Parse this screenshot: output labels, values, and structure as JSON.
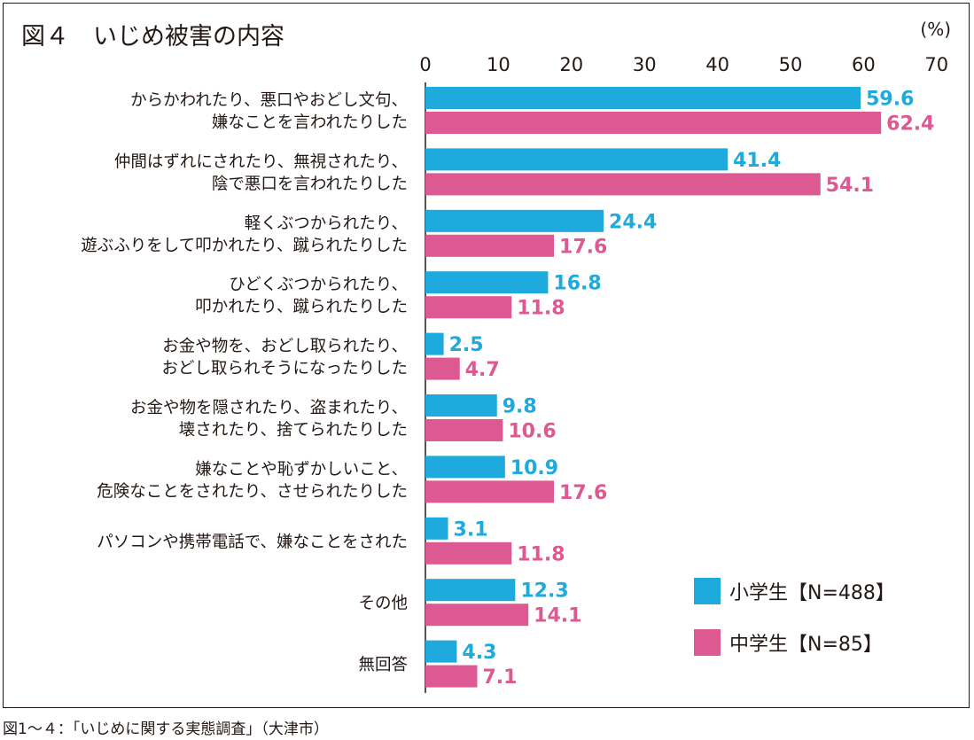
{
  "chart_data": {
    "type": "bar",
    "orientation": "horizontal",
    "title": "図４　いじめ被害の内容",
    "unit": "(%)",
    "xlim": [
      0,
      70
    ],
    "ticks": [
      0,
      10,
      20,
      30,
      40,
      50,
      60,
      70
    ],
    "grid": false,
    "legend_position": "bottom-right",
    "categories": [
      [
        "からかわれたり、悪口やおどし文句、",
        "嫌なことを言われたりした"
      ],
      [
        "仲間はずれにされたり、無視されたり、",
        "陰で悪口を言われたりした"
      ],
      [
        "軽くぶつかられたり、",
        "遊ぶふりをして叩かれたり、蹴られたりした"
      ],
      [
        "ひどくぶつかられたり、",
        "叩かれたり、蹴られたりした"
      ],
      [
        "お金や物を、おどし取られたり、",
        "おどし取られそうになったりした"
      ],
      [
        "お金や物を隠されたり、盗まれたり、",
        "壊されたり、捨てられたりした"
      ],
      [
        "嫌なことや恥ずかしいこと、",
        "危険なことをされたり、させられたりした"
      ],
      [
        "パソコンや携帯電話で、嫌なことをされた"
      ],
      [
        "その他"
      ],
      [
        "無回答"
      ]
    ],
    "series": [
      {
        "name": "小学生【N=488】",
        "color": "#1eaadc",
        "values": [
          59.6,
          41.4,
          24.4,
          16.8,
          2.5,
          9.8,
          10.9,
          3.1,
          12.3,
          4.3
        ],
        "labels": [
          "59.6",
          "41.4",
          "24.4",
          "16.8",
          "2.5",
          "9.8",
          "10.9",
          "3.1",
          "12.3",
          "4.3"
        ]
      },
      {
        "name": "中学生【N=85】",
        "color": "#dc5a91",
        "values": [
          62.4,
          54.1,
          17.6,
          11.8,
          4.7,
          10.6,
          17.6,
          11.8,
          14.1,
          7.1
        ],
        "labels": [
          "62.4",
          "54.1",
          "17.6",
          "11.8",
          "4.7",
          "10.6",
          "17.6",
          "11.8",
          "14.1",
          "7.1"
        ]
      }
    ]
  },
  "source": "図1〜４：｢いじめに関する実態調査｣（大津市）"
}
